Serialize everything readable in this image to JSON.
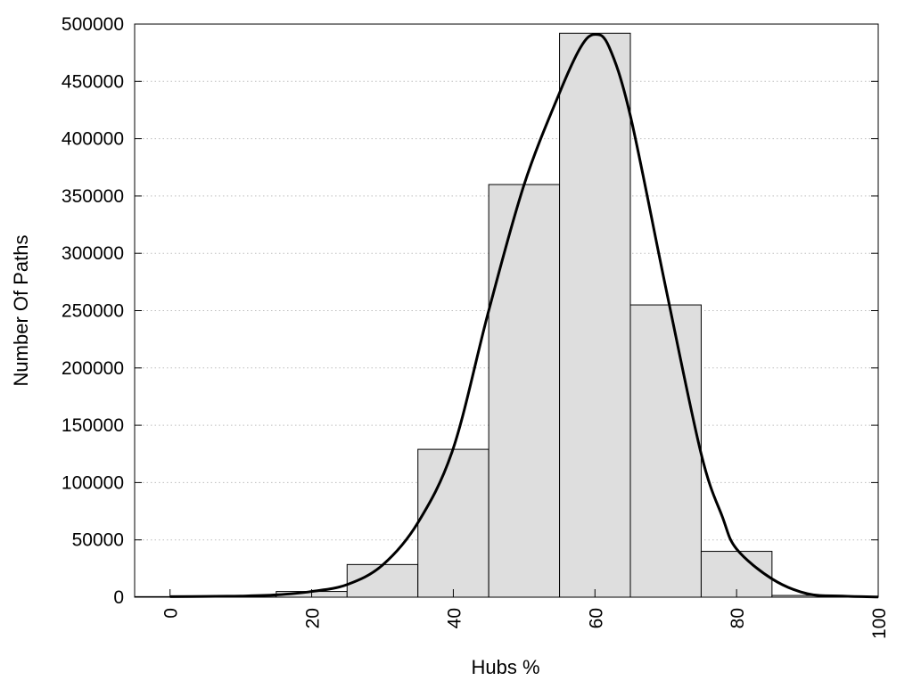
{
  "chart_data": {
    "type": "bar",
    "subtype": "histogram-with-density-curve",
    "title": "",
    "xlabel": "Hubs %",
    "ylabel": "Number Of Paths",
    "xlim": [
      -5,
      100
    ],
    "ylim": [
      0,
      500000
    ],
    "x_ticks": [
      0,
      20,
      40,
      60,
      80,
      100
    ],
    "x_tick_labels": [
      "0",
      "20",
      "40",
      "60",
      "80",
      "100"
    ],
    "y_ticks": [
      0,
      50000,
      100000,
      150000,
      200000,
      250000,
      300000,
      350000,
      400000,
      450000,
      500000
    ],
    "y_tick_labels": [
      "0",
      "50000",
      "100000",
      "150000",
      "200000",
      "250000",
      "300000",
      "350000",
      "400000",
      "450000",
      "500000"
    ],
    "grid": "horizontal dotted",
    "legend": "none",
    "bin_width": 10,
    "bins": [
      {
        "center": 0,
        "value": 500
      },
      {
        "center": 10,
        "value": 1000
      },
      {
        "center": 20,
        "value": 5000
      },
      {
        "center": 30,
        "value": 28500
      },
      {
        "center": 40,
        "value": 129000
      },
      {
        "center": 50,
        "value": 360000
      },
      {
        "center": 60,
        "value": 492000
      },
      {
        "center": 70,
        "value": 255000
      },
      {
        "center": 80,
        "value": 40000
      },
      {
        "center": 90,
        "value": 1500
      }
    ],
    "curve": {
      "x": [
        0,
        5,
        10,
        15,
        20,
        25,
        30,
        35,
        40,
        45,
        50,
        55,
        58,
        60,
        62,
        65,
        70,
        75,
        78,
        80,
        85,
        90,
        95,
        100
      ],
      "y": [
        500,
        700,
        1000,
        2000,
        5000,
        11000,
        28000,
        65000,
        130000,
        250000,
        360000,
        440000,
        480000,
        491000,
        480000,
        420000,
        270000,
        125000,
        70000,
        42000,
        16000,
        3000,
        1000,
        200
      ]
    },
    "colors": {
      "bar_fill": "#dedede",
      "bar_stroke": "#000000",
      "curve": "#000000",
      "grid": "#bdbdbd"
    }
  }
}
